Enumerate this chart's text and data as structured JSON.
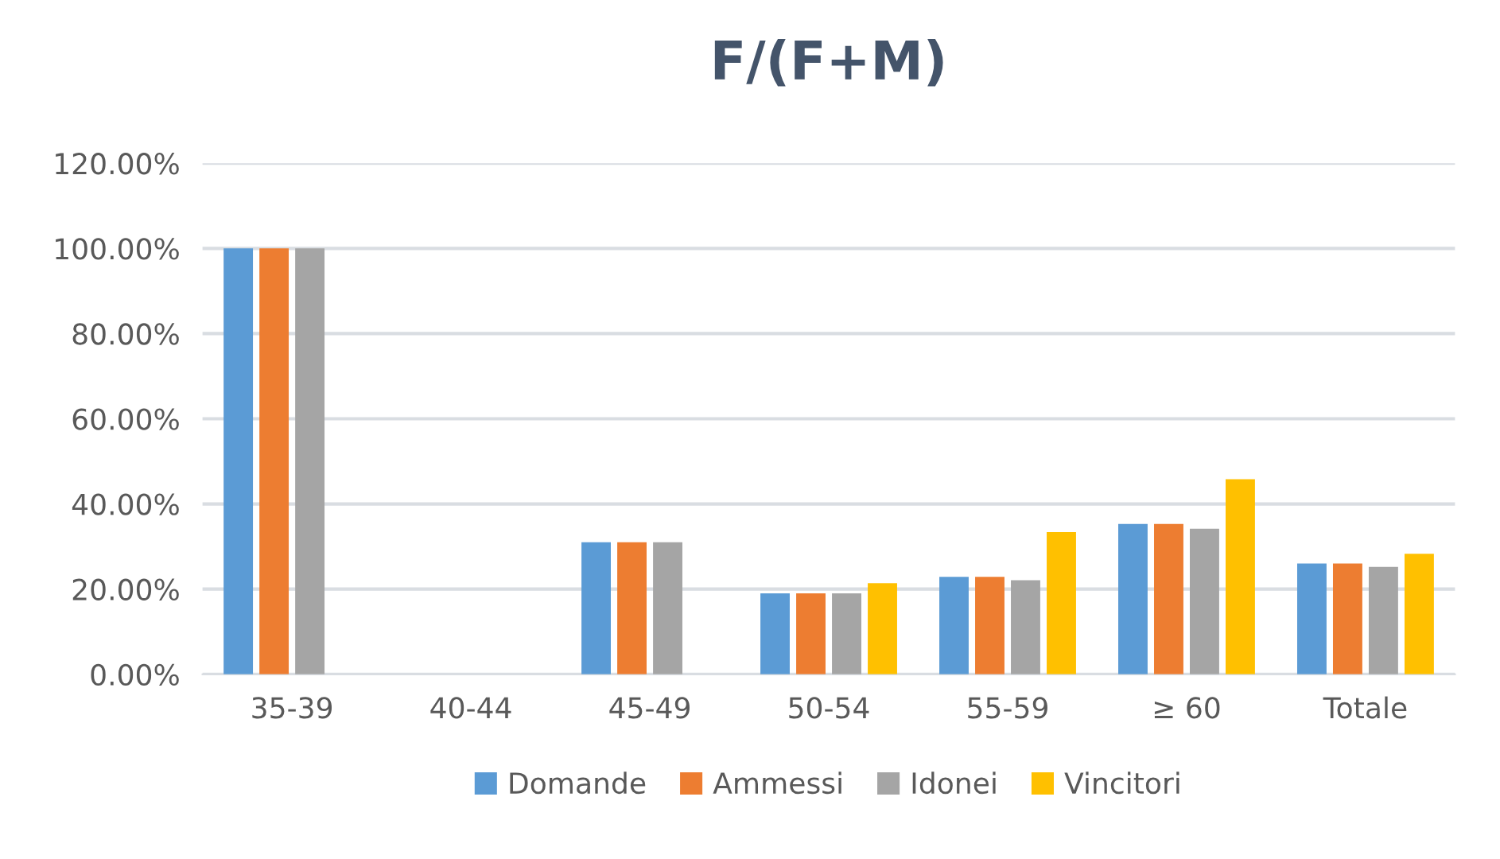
{
  "chart_data": {
    "type": "bar",
    "title": "F/(F+M)",
    "categories": [
      "35-39",
      "40-44",
      "45-49",
      "50-54",
      "55-59",
      "≥ 60",
      "Totale"
    ],
    "series": [
      {
        "name": "Domande",
        "color": "#5b9bd5",
        "values": [
          100,
          null,
          31,
          19,
          22.9,
          35.3,
          26
        ]
      },
      {
        "name": "Ammessi",
        "color": "#ed7d31",
        "values": [
          100,
          null,
          31,
          19,
          22.9,
          35.3,
          26
        ]
      },
      {
        "name": "Idonei",
        "color": "#a5a5a5",
        "values": [
          100,
          null,
          31,
          19,
          22.1,
          34.2,
          25.2
        ]
      },
      {
        "name": "Vincitori",
        "color": "#ffc000",
        "values": [
          null,
          null,
          null,
          21.4,
          33.4,
          45.8,
          28.3
        ]
      }
    ],
    "ylim": [
      0,
      120
    ],
    "yticks": [
      {
        "value": 0,
        "label": "0.00%"
      },
      {
        "value": 20,
        "label": "20.00%"
      },
      {
        "value": 40,
        "label": "40.00%"
      },
      {
        "value": 60,
        "label": "60.00%"
      },
      {
        "value": 80,
        "label": "80.00%"
      },
      {
        "value": 100,
        "label": "100.00%"
      },
      {
        "value": 120,
        "label": "120.00%"
      }
    ],
    "grid": "y",
    "legend": "bottom"
  }
}
